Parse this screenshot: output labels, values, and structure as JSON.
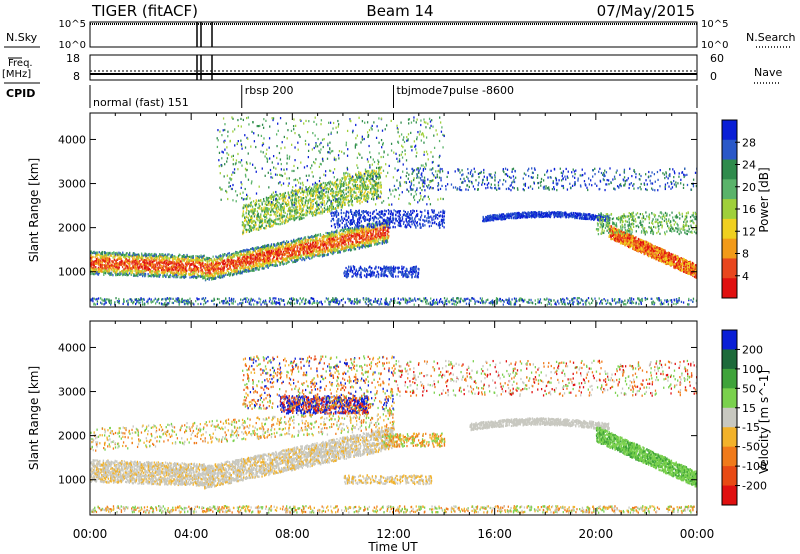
{
  "header": {
    "radar": "TIGER (fitACF)",
    "beam": "Beam 14",
    "date": "07/May/2015"
  },
  "left_labels": {
    "nsky": "N.Sky",
    "freq": "Freq.",
    "freq_unit": "[MHz]",
    "cpid": "CPID"
  },
  "right_labels": {
    "nsearch": "N.Search",
    "nave": "Nave"
  },
  "noise_panel": {
    "left_ticks": [
      "10^5",
      "10^0"
    ],
    "right_ticks": [
      "10^5",
      "10^0"
    ]
  },
  "freq_panel": {
    "left_ticks": [
      "18",
      "8"
    ],
    "right_ticks": [
      "60",
      "0"
    ]
  },
  "cpid_segments": [
    {
      "label": "normal (fast) 151",
      "start_hour": 0
    },
    {
      "label": "rbsp 200",
      "start_hour": 6
    },
    {
      "label": "tbjmode7pulse -8600",
      "start_hour": 12
    }
  ],
  "colors": {
    "power": [
      "#0a1fd6",
      "#2a58c8",
      "#2f8b4c",
      "#5ab36a",
      "#9fd03a",
      "#f0d020",
      "#f29a19",
      "#e8461e",
      "#e01010"
    ],
    "velocity": [
      "#0a1fd6",
      "#1d6a3a",
      "#3fa33a",
      "#7ad14d",
      "#c8c8c0",
      "#f2b22a",
      "#f07a1a",
      "#e84a14",
      "#e01010"
    ]
  },
  "colorbars": {
    "power": {
      "label": "Power [dB]",
      "ticks": [
        "28",
        "24",
        "20",
        "16",
        "12",
        "8",
        "4"
      ]
    },
    "velocity": {
      "label": "Velocity [m s^-1]",
      "ticks": [
        "200",
        "100",
        "50",
        "15",
        "-15",
        "-50",
        "-100",
        "-200"
      ]
    }
  },
  "chart_data": {
    "type": "heatmap",
    "xlabel": "Time UT",
    "x_ticks": [
      "00:00",
      "04:00",
      "08:00",
      "12:00",
      "16:00",
      "20:00",
      "00:00"
    ],
    "xlim_hours": [
      0,
      24
    ],
    "panels": [
      {
        "name": "power",
        "ylabel": "Slant Range [km]",
        "ylim": [
          200,
          4600
        ],
        "y_ticks": [
          1000,
          2000,
          3000,
          4000
        ],
        "colorbar": "Power [dB]"
      },
      {
        "name": "velocity",
        "ylabel": "Slant Range [km]",
        "ylim": [
          200,
          4600
        ],
        "y_ticks": [
          1000,
          2000,
          3000,
          4000
        ],
        "colorbar": "Velocity [m s^-1]"
      }
    ]
  }
}
